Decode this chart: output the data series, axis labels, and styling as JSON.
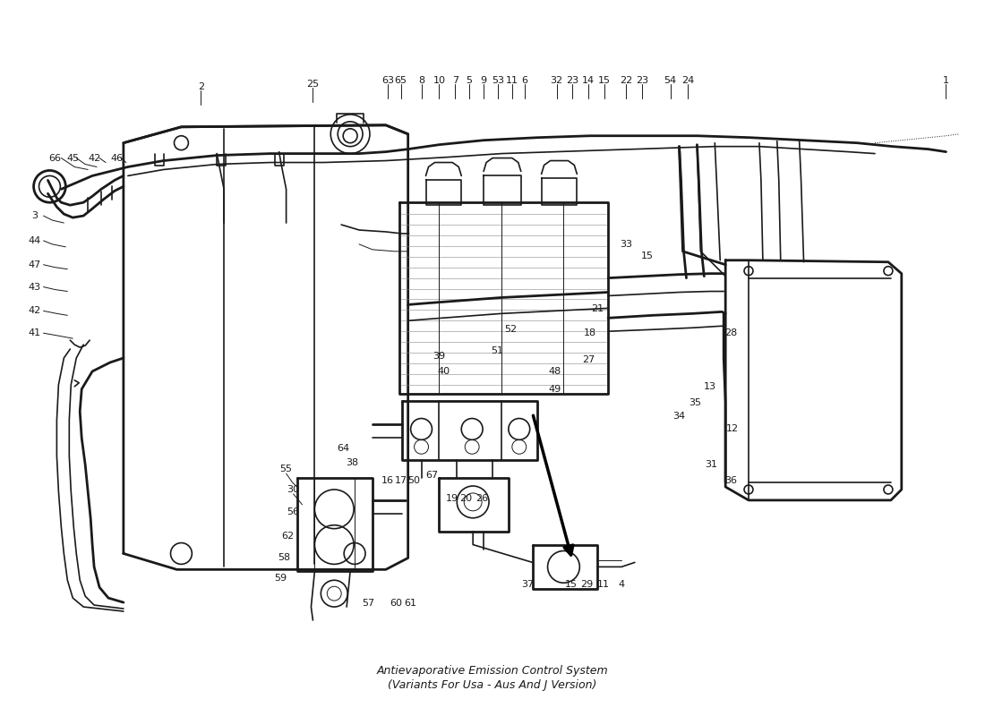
{
  "title": "Antievaporative Emission Control System\n(Variants For Usa - Aus And J Version)",
  "bg": "#ffffff",
  "lc": "#1a1a1a",
  "fig_width": 11.0,
  "fig_height": 8.0,
  "dpi": 100
}
